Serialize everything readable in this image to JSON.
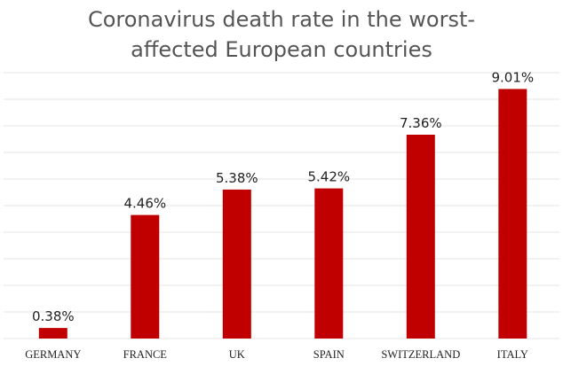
{
  "chart_data": {
    "type": "bar",
    "title_lines": [
      "Coronavirus death rate in the worst-",
      "affected European countries"
    ],
    "categories": [
      "GERMANY",
      "FRANCE",
      "UK",
      "SPAIN",
      "SWITZERLAND",
      "ITALY"
    ],
    "values": [
      0.38,
      4.46,
      5.38,
      5.42,
      7.36,
      9.01
    ],
    "value_labels": [
      "0.38%",
      "4.46%",
      "5.38%",
      "5.42%",
      "7.36%",
      "9.01%"
    ],
    "xlabel": "",
    "ylabel": "",
    "ylim": [
      0,
      9.6
    ],
    "grid": true,
    "legend": "none",
    "bar_color": "#c00000",
    "background": "#ffffff"
  }
}
